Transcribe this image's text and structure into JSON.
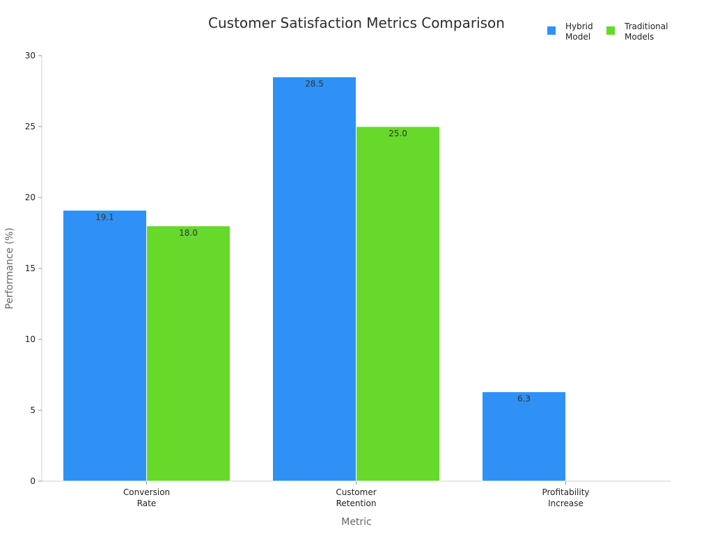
{
  "chart_data": {
    "type": "bar",
    "title": "Customer Satisfaction Metrics Comparison",
    "xlabel": "Metric",
    "ylabel": "Performance (%)",
    "categories": [
      [
        "Conversion",
        "Rate"
      ],
      [
        "Customer",
        "Retention"
      ],
      [
        "Profitability",
        "Increase"
      ]
    ],
    "series": [
      {
        "name": [
          "Hybrid",
          "Model"
        ],
        "color": "#2f91f6",
        "values": [
          19.1,
          28.5,
          6.3
        ],
        "labels": [
          "19.1",
          "28.5",
          "6.3"
        ]
      },
      {
        "name": [
          "Traditional",
          "Models"
        ],
        "color": "#66d92a",
        "values": [
          18.0,
          25.0,
          null
        ],
        "labels": [
          "18.0",
          "25.0",
          null
        ]
      }
    ],
    "ylim": [
      0,
      30
    ],
    "yticks": [
      0,
      5,
      10,
      15,
      20,
      25,
      30
    ],
    "grid": false,
    "legend": "top-right"
  }
}
